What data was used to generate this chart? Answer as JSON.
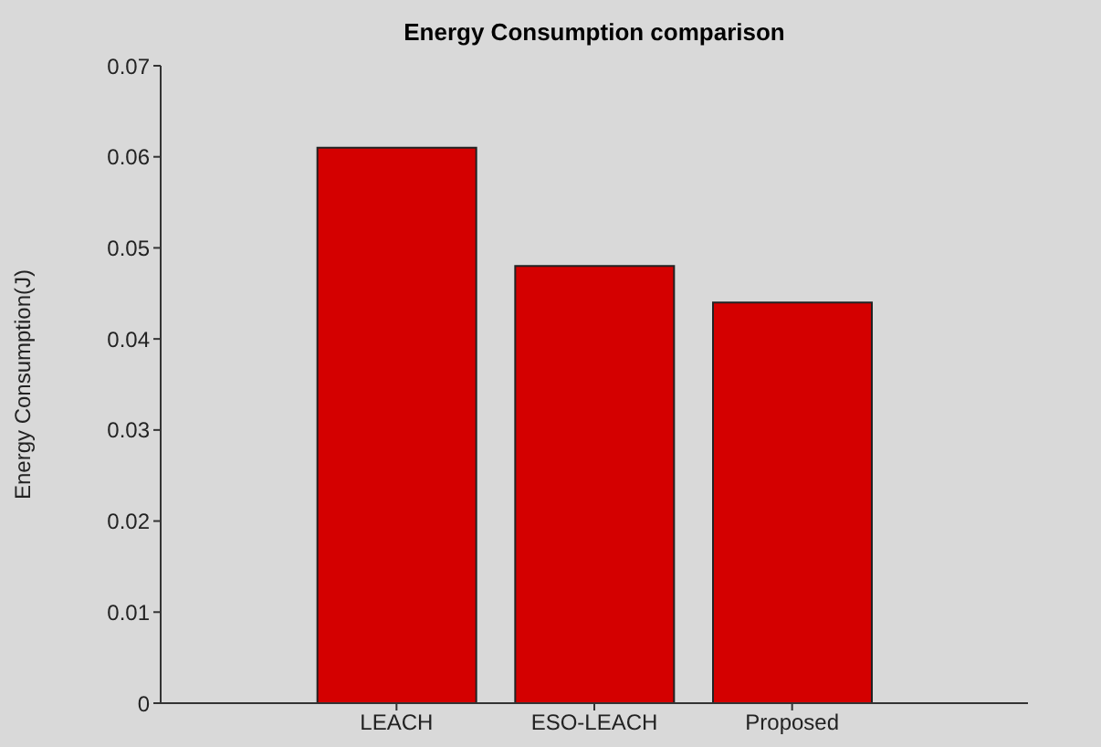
{
  "chart_data": {
    "type": "bar",
    "title": "Energy Consumption comparison",
    "ylabel": "Energy Consumption(J)",
    "categories": [
      "LEACH",
      "ESO-LEACH",
      "Proposed"
    ],
    "values": [
      0.061,
      0.048,
      0.044
    ],
    "color": "#d40000",
    "ylim": [
      0,
      0.07
    ],
    "yticks": [
      0,
      0.01,
      0.02,
      0.03,
      0.04,
      0.05,
      0.06,
      0.07
    ],
    "grid": false
  }
}
